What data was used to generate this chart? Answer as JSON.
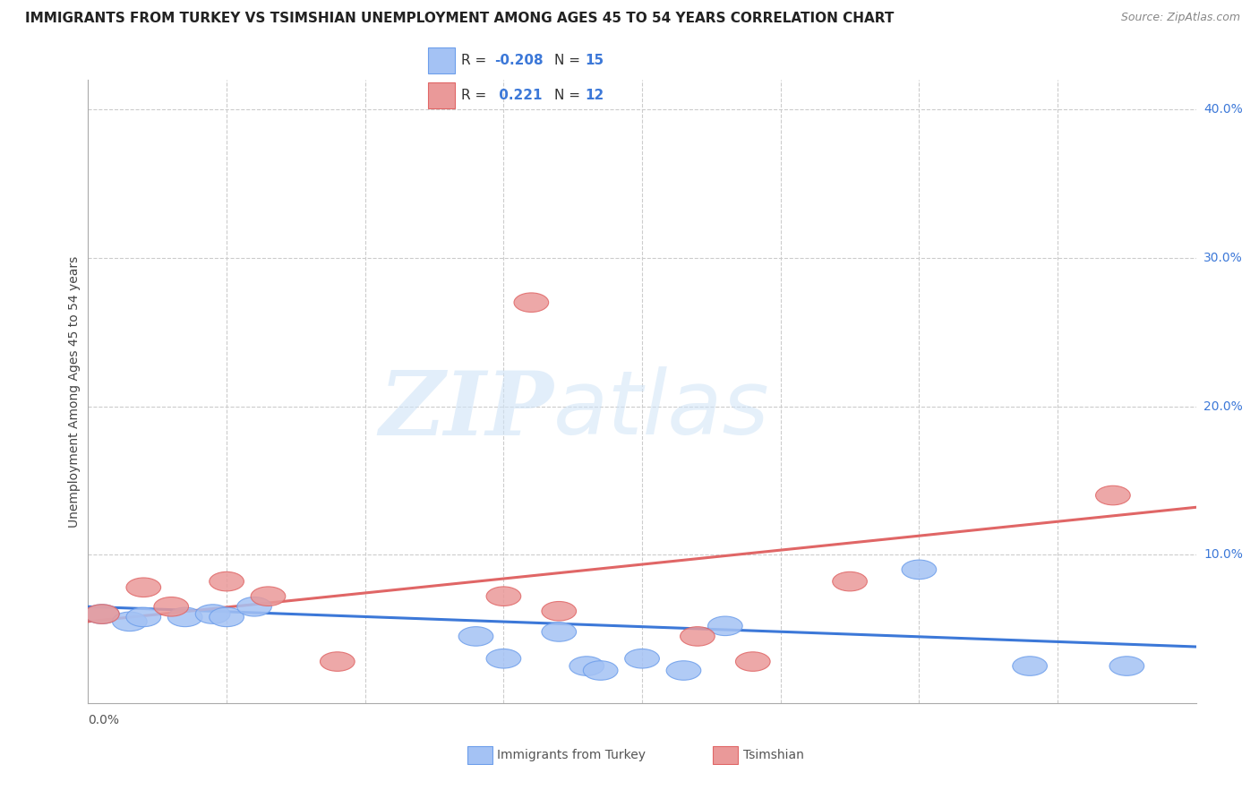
{
  "title": "IMMIGRANTS FROM TURKEY VS TSIMSHIAN UNEMPLOYMENT AMONG AGES 45 TO 54 YEARS CORRELATION CHART",
  "source": "Source: ZipAtlas.com",
  "ylabel": "Unemployment Among Ages 45 to 54 years",
  "xlim": [
    0.0,
    0.08
  ],
  "ylim": [
    0.0,
    0.42
  ],
  "color_blue": "#a4c2f4",
  "color_blue_edge": "#6d9eeb",
  "color_pink": "#ea9999",
  "color_pink_edge": "#e06666",
  "color_line_blue": "#3c78d8",
  "color_line_pink": "#e06666",
  "grid_color": "#cccccc",
  "blue_points_x": [
    0.001,
    0.003,
    0.004,
    0.007,
    0.009,
    0.01,
    0.012,
    0.028,
    0.03,
    0.034,
    0.036,
    0.037,
    0.04,
    0.043,
    0.046,
    0.06,
    0.068,
    0.075
  ],
  "blue_points_y": [
    0.06,
    0.055,
    0.058,
    0.058,
    0.06,
    0.058,
    0.065,
    0.045,
    0.03,
    0.048,
    0.025,
    0.022,
    0.03,
    0.022,
    0.052,
    0.09,
    0.025,
    0.025
  ],
  "pink_points_x": [
    0.001,
    0.004,
    0.006,
    0.01,
    0.013,
    0.018,
    0.03,
    0.032,
    0.034,
    0.044,
    0.048,
    0.055,
    0.074
  ],
  "pink_points_y": [
    0.06,
    0.078,
    0.065,
    0.082,
    0.072,
    0.028,
    0.072,
    0.27,
    0.062,
    0.045,
    0.028,
    0.082,
    0.14
  ],
  "blue_line_x": [
    0.0,
    0.08
  ],
  "blue_line_y": [
    0.065,
    0.038
  ],
  "pink_line_x": [
    0.0,
    0.08
  ],
  "pink_line_y": [
    0.055,
    0.132
  ],
  "title_fontsize": 11,
  "source_fontsize": 9,
  "axis_label_fontsize": 10,
  "tick_label_fontsize": 10,
  "legend_fontsize": 11,
  "background_color": "#ffffff"
}
